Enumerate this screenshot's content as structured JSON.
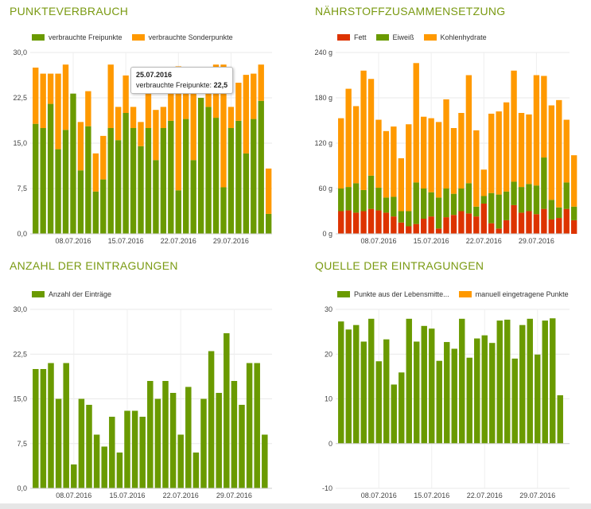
{
  "colors": {
    "green": "#6a9a00",
    "orange": "#ff9900",
    "red": "#dd3300",
    "title": "#7a9a12",
    "grid": "#e9e9e9"
  },
  "charts": [
    {
      "id": "punkteverbrauch",
      "title": "PUNKTEVERBRAUCH",
      "legend": [
        "verbrauchte Freipunkte",
        "verbrauchte Sonderpunkte"
      ],
      "tooltip": {
        "date": "25.07.2016",
        "label": "verbrauchte Freipunkte:",
        "value": "22,5"
      }
    },
    {
      "id": "naehrstoff",
      "title": "NÄHRSTOFFZUSAMMENSETZUNG",
      "legend": [
        "Fett",
        "Eiweiß",
        "Kohlenhydrate"
      ]
    },
    {
      "id": "eintragungen",
      "title": "ANZAHL DER EINTRAGUNGEN",
      "legend": [
        "Anzahl der Einträge"
      ]
    },
    {
      "id": "quelle",
      "title": "QUELLE DER EINTRAGUNGEN",
      "legend": [
        "Punkte aus der Lebensmitte...",
        "manuell eingetragene Punkte"
      ]
    }
  ],
  "chart_data": [
    {
      "type": "bar",
      "stacked": true,
      "title": "PUNKTEVERBRAUCH",
      "ylim": [
        0,
        30
      ],
      "yticks": [
        "0,0",
        "7,5",
        "15,0",
        "22,5",
        "30,0"
      ],
      "ytick_values": [
        0,
        7.5,
        15,
        22.5,
        30
      ],
      "xticks": [
        {
          "label": "08.07.2016",
          "index": 5
        },
        {
          "label": "15.07.2016",
          "index": 12
        },
        {
          "label": "22.07.2016",
          "index": 19
        },
        {
          "label": "29.07.2016",
          "index": 26
        }
      ],
      "grid": true,
      "legend_position": "top-left",
      "series": [
        {
          "name": "verbrauchte Freipunkte",
          "color": "green",
          "values": [
            18.2,
            17.5,
            21.5,
            14.0,
            17.2,
            23.2,
            10.5,
            17.8,
            7.0,
            9.0,
            17.5,
            15.5,
            20.0,
            17.5,
            14.5,
            17.5,
            12.2,
            17.5,
            18.7,
            7.2,
            19.0,
            12.2,
            22.5,
            21.0,
            19.2,
            7.7,
            17.5,
            18.7,
            13.3,
            19.0,
            22.0,
            3.3
          ]
        },
        {
          "name": "verbrauchte Sonderpunkte",
          "color": "orange",
          "values": [
            9.3,
            9.0,
            5.0,
            12.5,
            10.8,
            0.0,
            8.0,
            5.8,
            6.3,
            7.2,
            10.5,
            5.5,
            6.2,
            3.5,
            4.0,
            6.3,
            8.3,
            3.5,
            8.0,
            20.5,
            6.0,
            13.8,
            0.0,
            5.0,
            8.8,
            20.3,
            3.5,
            6.3,
            13.0,
            7.5,
            6.0,
            7.5
          ]
        }
      ]
    },
    {
      "type": "bar",
      "stacked": true,
      "title": "NÄHRSTOFFZUSAMMENSETZUNG",
      "ylim": [
        0,
        240
      ],
      "yticks": [
        "0 g",
        "60 g",
        "120 g",
        "180 g",
        "240 g"
      ],
      "ytick_values": [
        0,
        60,
        120,
        180,
        240
      ],
      "xticks": [
        {
          "label": "08.07.2016",
          "index": 5
        },
        {
          "label": "15.07.2016",
          "index": 12
        },
        {
          "label": "22.07.2016",
          "index": 19
        },
        {
          "label": "29.07.2016",
          "index": 26
        }
      ],
      "grid": true,
      "legend_position": "top-left",
      "series": [
        {
          "name": "Fett",
          "color": "red",
          "values": [
            30,
            31,
            28,
            30,
            33,
            31,
            28,
            23,
            15,
            10,
            13,
            20,
            23,
            7,
            22,
            25,
            30,
            27,
            23,
            40,
            14,
            7,
            18,
            38,
            28,
            30,
            26,
            33,
            19,
            21,
            33,
            18
          ]
        },
        {
          "name": "Eiweiß",
          "color": "green",
          "values": [
            30,
            31,
            39,
            28,
            44,
            30,
            20,
            26,
            15,
            20,
            55,
            40,
            32,
            41,
            38,
            28,
            30,
            40,
            13,
            10,
            40,
            45,
            38,
            31,
            34,
            36,
            38,
            68,
            26,
            14,
            35,
            18
          ]
        },
        {
          "name": "Kohlenhydrate",
          "color": "orange",
          "values": [
            93,
            130,
            102,
            158,
            128,
            90,
            88,
            93,
            70,
            115,
            158,
            95,
            98,
            100,
            118,
            87,
            100,
            143,
            101,
            35,
            105,
            110,
            118,
            147,
            98,
            92,
            146,
            108,
            125,
            142,
            83,
            68
          ]
        }
      ]
    },
    {
      "type": "bar",
      "title": "ANZAHL DER EINTRAGUNGEN",
      "ylim": [
        0,
        30
      ],
      "yticks": [
        "0,0",
        "7,5",
        "15,0",
        "22,5",
        "30,0"
      ],
      "ytick_values": [
        0,
        7.5,
        15,
        22.5,
        30
      ],
      "xticks": [
        {
          "label": "08.07.2016",
          "index": 5
        },
        {
          "label": "15.07.2016",
          "index": 12
        },
        {
          "label": "22.07.2016",
          "index": 19
        },
        {
          "label": "29.07.2016",
          "index": 26
        }
      ],
      "grid": true,
      "legend_position": "top-left",
      "series": [
        {
          "name": "Anzahl der Einträge",
          "color": "green",
          "values": [
            20,
            20,
            21,
            15,
            21,
            4,
            15,
            14,
            9,
            7,
            12,
            6,
            13,
            13,
            12,
            18,
            15,
            18,
            16,
            9,
            17,
            6,
            15,
            23,
            16,
            26,
            18,
            14,
            21,
            21,
            9
          ]
        }
      ]
    },
    {
      "type": "bar",
      "title": "QUELLE DER EINTRAGUNGEN",
      "ylim": [
        -10,
        30
      ],
      "yticks": [
        "-10",
        "0",
        "10",
        "20",
        "30"
      ],
      "ytick_values": [
        -10,
        0,
        10,
        20,
        30
      ],
      "xticks": [
        {
          "label": "08.07.2016",
          "index": 5
        },
        {
          "label": "15.07.2016",
          "index": 12
        },
        {
          "label": "22.07.2016",
          "index": 19
        },
        {
          "label": "29.07.2016",
          "index": 26
        }
      ],
      "grid": true,
      "legend_position": "top-left",
      "series": [
        {
          "name": "Punkte aus der Lebensmitte...",
          "color": "green",
          "values": [
            27.3,
            25.5,
            26.5,
            22.8,
            27.9,
            18.4,
            23.3,
            13.2,
            15.9,
            27.9,
            22.8,
            26.3,
            25.7,
            18.5,
            22.7,
            21.2,
            27.9,
            19.2,
            23.5,
            24.2,
            22.5,
            27.5,
            27.7,
            19.0,
            26.5,
            27.9,
            19.9,
            27.5,
            28.0,
            10.8
          ]
        },
        {
          "name": "manuell eingetragene Punkte",
          "color": "orange",
          "values": [
            0,
            0,
            0,
            0,
            0,
            0,
            0,
            0,
            0,
            0,
            0,
            0,
            0,
            0,
            0,
            0,
            0,
            0,
            0,
            0,
            0,
            0,
            0,
            0,
            0,
            0,
            0,
            0,
            0,
            0
          ]
        }
      ]
    }
  ]
}
